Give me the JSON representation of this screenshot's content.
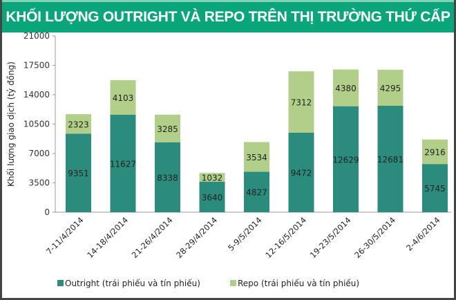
{
  "chart_data": {
    "type": "bar",
    "stacked": true,
    "title": "KHỐI LƯỢNG OUTRIGHT VÀ REPO TRÊN THỊ TRƯỜNG THỨ CẤP",
    "ylabel": "Khối lượng giao dịch (tỷ đồng)",
    "xlabel": "",
    "ylim": [
      0,
      21000
    ],
    "yticks": [
      0,
      3500,
      7000,
      10500,
      14000,
      17500,
      21000
    ],
    "grid": false,
    "legend_position": "bottom",
    "categories": [
      "7-11/4/2014",
      "14-18/4/2014",
      "21-26/4/2014",
      "28-29/4/2014",
      "5-9/5/2014",
      "12-16/5/2014",
      "19-23/5/2014",
      "26-30/5/2014",
      "2-4/6/2014"
    ],
    "series": [
      {
        "name": "Outright (trái phiếu và tín phiếu)",
        "color": "#2b8c7e",
        "values": [
          9351,
          11627,
          8338,
          3640,
          4827,
          9472,
          12629,
          12681,
          5745
        ]
      },
      {
        "name": "Repo (trái phiếu và tín phiếu)",
        "color": "#b2cf8a",
        "values": [
          2323,
          4103,
          3285,
          1032,
          3534,
          7312,
          4380,
          4295,
          2916
        ]
      }
    ]
  }
}
